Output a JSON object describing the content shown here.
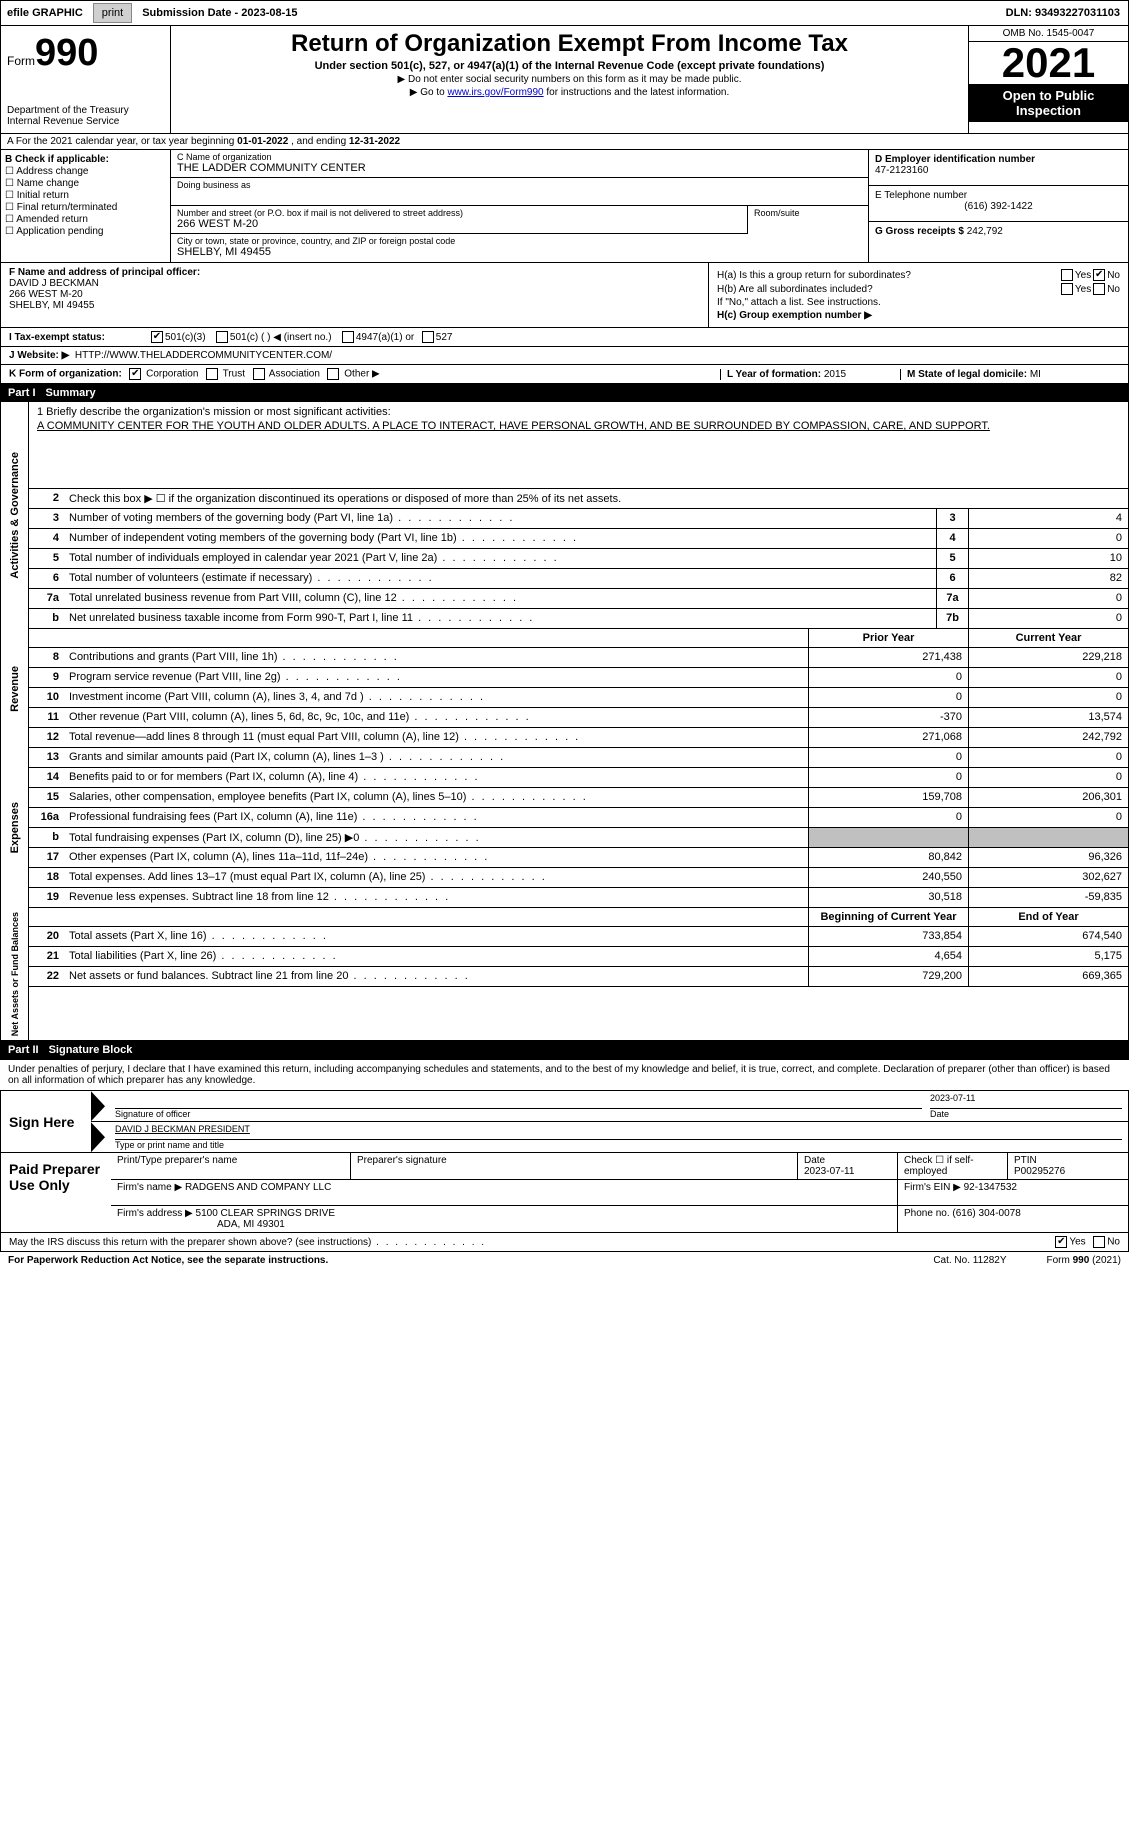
{
  "topbar": {
    "efile_label": "efile GRAPHIC",
    "print_btn": "print",
    "submission_label": "Submission Date - 2023-08-15",
    "dln": "DLN: 93493227031103"
  },
  "header": {
    "form_word": "Form",
    "form_num": "990",
    "dept": "Department of the Treasury Internal Revenue Service",
    "title": "Return of Organization Exempt From Income Tax",
    "subtitle": "Under section 501(c), 527, or 4947(a)(1) of the Internal Revenue Code (except private foundations)",
    "note1": "▶ Do not enter social security numbers on this form as it may be made public.",
    "note2_pre": "▶ Go to ",
    "note2_link": "www.irs.gov/Form990",
    "note2_post": " for instructions and the latest information.",
    "omb": "OMB No. 1545-0047",
    "year": "2021",
    "otp": "Open to Public Inspection"
  },
  "rowA": {
    "text_pre": "A For the 2021 calendar year, or tax year beginning ",
    "begin": "01-01-2022",
    "mid": " , and ending ",
    "end": "12-31-2022"
  },
  "colB": {
    "header": "B Check if applicable:",
    "opts": [
      "Address change",
      "Name change",
      "Initial return",
      "Final return/terminated",
      "Amended return",
      "Application pending"
    ]
  },
  "colC": {
    "name_label": "C Name of organization",
    "name": "THE LADDER COMMUNITY CENTER",
    "dba_label": "Doing business as",
    "dba": "",
    "street_label": "Number and street (or P.O. box if mail is not delivered to street address)",
    "street": "266 WEST M-20",
    "room_label": "Room/suite",
    "room": "",
    "city_label": "City or town, state or province, country, and ZIP or foreign postal code",
    "city": "SHELBY, MI  49455"
  },
  "colD": {
    "ein_label": "D Employer identification number",
    "ein": "47-2123160",
    "phone_label": "E Telephone number",
    "phone": "(616) 392-1422",
    "gross_label": "G Gross receipts $",
    "gross": "242,792"
  },
  "rowF": {
    "label": "F  Name and address of principal officer:",
    "name": "DAVID J BECKMAN",
    "addr1": "266 WEST M-20",
    "addr2": "SHELBY, MI  49455"
  },
  "rowH": {
    "ha_label": "H(a)  Is this a group return for subordinates?",
    "hb_label": "H(b)  Are all subordinates included?",
    "hb_note": "If \"No,\" attach a list. See instructions.",
    "hc_label": "H(c)  Group exemption number ▶",
    "yes": "Yes",
    "no": "No"
  },
  "rowI": {
    "label": "I  Tax-exempt status:",
    "o1": "501(c)(3)",
    "o2": "501(c) (   ) ◀ (insert no.)",
    "o3": "4947(a)(1) or",
    "o4": "527"
  },
  "rowJ": {
    "label": "J  Website: ▶",
    "url": "HTTP://WWW.THELADDERCOMMUNITYCENTER.COM/"
  },
  "rowK": {
    "label": "K Form of organization:",
    "o1": "Corporation",
    "o2": "Trust",
    "o3": "Association",
    "o4": "Other ▶",
    "l_label": "L Year of formation:",
    "l_val": "2015",
    "m_label": "M State of legal domicile:",
    "m_val": "MI"
  },
  "part1": {
    "partno": "Part I",
    "title": "Summary"
  },
  "mission": {
    "label": "1   Briefly describe the organization's mission or most significant activities:",
    "text": "A COMMUNITY CENTER FOR THE YOUTH AND OLDER ADULTS. A PLACE TO INTERACT, HAVE PERSONAL GROWTH, AND BE SURROUNDED BY COMPASSION, CARE, AND SUPPORT."
  },
  "line2": "Check this box ▶ ☐  if the organization discontinued its operations or disposed of more than 25% of its net assets.",
  "govLabel": "Activities & Governance",
  "revLabel": "Revenue",
  "expLabel": "Expenses",
  "netLabel": "Net Assets or Fund Balances",
  "lines_gov": [
    {
      "n": "3",
      "d": "Number of voting members of the governing body (Part VI, line 1a)",
      "box": "3",
      "v": "4"
    },
    {
      "n": "4",
      "d": "Number of independent voting members of the governing body (Part VI, line 1b)",
      "box": "4",
      "v": "0"
    },
    {
      "n": "5",
      "d": "Total number of individuals employed in calendar year 2021 (Part V, line 2a)",
      "box": "5",
      "v": "10"
    },
    {
      "n": "6",
      "d": "Total number of volunteers (estimate if necessary)",
      "box": "6",
      "v": "82"
    },
    {
      "n": "7a",
      "d": "Total unrelated business revenue from Part VIII, column (C), line 12",
      "box": "7a",
      "v": "0"
    },
    {
      "n": "b",
      "d": "Net unrelated business taxable income from Form 990-T, Part I, line 11",
      "box": "7b",
      "v": "0"
    }
  ],
  "col_hdrs": {
    "prior": "Prior Year",
    "current": "Current Year",
    "begin": "Beginning of Current Year",
    "end": "End of Year"
  },
  "lines_rev": [
    {
      "n": "8",
      "d": "Contributions and grants (Part VIII, line 1h)",
      "p": "271,438",
      "c": "229,218"
    },
    {
      "n": "9",
      "d": "Program service revenue (Part VIII, line 2g)",
      "p": "0",
      "c": "0"
    },
    {
      "n": "10",
      "d": "Investment income (Part VIII, column (A), lines 3, 4, and 7d )",
      "p": "0",
      "c": "0"
    },
    {
      "n": "11",
      "d": "Other revenue (Part VIII, column (A), lines 5, 6d, 8c, 9c, 10c, and 11e)",
      "p": "-370",
      "c": "13,574"
    },
    {
      "n": "12",
      "d": "Total revenue—add lines 8 through 11 (must equal Part VIII, column (A), line 12)",
      "p": "271,068",
      "c": "242,792"
    }
  ],
  "lines_exp": [
    {
      "n": "13",
      "d": "Grants and similar amounts paid (Part IX, column (A), lines 1–3 )",
      "p": "0",
      "c": "0"
    },
    {
      "n": "14",
      "d": "Benefits paid to or for members (Part IX, column (A), line 4)",
      "p": "0",
      "c": "0"
    },
    {
      "n": "15",
      "d": "Salaries, other compensation, employee benefits (Part IX, column (A), lines 5–10)",
      "p": "159,708",
      "c": "206,301"
    },
    {
      "n": "16a",
      "d": "Professional fundraising fees (Part IX, column (A), line 11e)",
      "p": "0",
      "c": "0"
    },
    {
      "n": "b",
      "d": "Total fundraising expenses (Part IX, column (D), line 25) ▶0",
      "p": "",
      "c": "",
      "shaded": true
    },
    {
      "n": "17",
      "d": "Other expenses (Part IX, column (A), lines 11a–11d, 11f–24e)",
      "p": "80,842",
      "c": "96,326"
    },
    {
      "n": "18",
      "d": "Total expenses. Add lines 13–17 (must equal Part IX, column (A), line 25)",
      "p": "240,550",
      "c": "302,627"
    },
    {
      "n": "19",
      "d": "Revenue less expenses. Subtract line 18 from line 12",
      "p": "30,518",
      "c": "-59,835"
    }
  ],
  "lines_net": [
    {
      "n": "20",
      "d": "Total assets (Part X, line 16)",
      "p": "733,854",
      "c": "674,540"
    },
    {
      "n": "21",
      "d": "Total liabilities (Part X, line 26)",
      "p": "4,654",
      "c": "5,175"
    },
    {
      "n": "22",
      "d": "Net assets or fund balances. Subtract line 21 from line 20",
      "p": "729,200",
      "c": "669,365"
    }
  ],
  "part2": {
    "partno": "Part II",
    "title": "Signature Block"
  },
  "sig_text": "Under penalties of perjury, I declare that I have examined this return, including accompanying schedules and statements, and to the best of my knowledge and belief, it is true, correct, and complete. Declaration of preparer (other than officer) is based on all information of which preparer has any knowledge.",
  "sign_here": "Sign Here",
  "sig": {
    "sig_label": "Signature of officer",
    "date": "2023-07-11",
    "date_label": "Date",
    "name": "DAVID J BECKMAN PRESIDENT",
    "name_label": "Type or print name and title"
  },
  "paid_label": "Paid Preparer Use Only",
  "paid": {
    "h1": "Print/Type preparer's name",
    "h2": "Preparer's signature",
    "h3_label": "Date",
    "h3": "2023-07-11",
    "h4": "Check ☐ if self-employed",
    "h5_label": "PTIN",
    "h5": "P00295276",
    "firm_name_label": "Firm's name     ▶",
    "firm_name": "RADGENS AND COMPANY LLC",
    "firm_ein_label": "Firm's EIN ▶",
    "firm_ein": "92-1347532",
    "firm_addr_label": "Firm's address ▶",
    "firm_addr1": "5100 CLEAR SPRINGS DRIVE",
    "firm_addr2": "ADA, MI  49301",
    "phone_label": "Phone no.",
    "phone": "(616) 304-0078"
  },
  "footer": {
    "discuss": "May the IRS discuss this return with the preparer shown above? (see instructions)",
    "yes": "Yes",
    "no": "No",
    "pra": "For Paperwork Reduction Act Notice, see the separate instructions.",
    "cat": "Cat. No. 11282Y",
    "form": "Form 990 (2021)"
  },
  "colors": {
    "link": "#0000cc",
    "black": "#000000",
    "shade": "#c0c0c0",
    "btn_bg": "#d0d0d0"
  }
}
